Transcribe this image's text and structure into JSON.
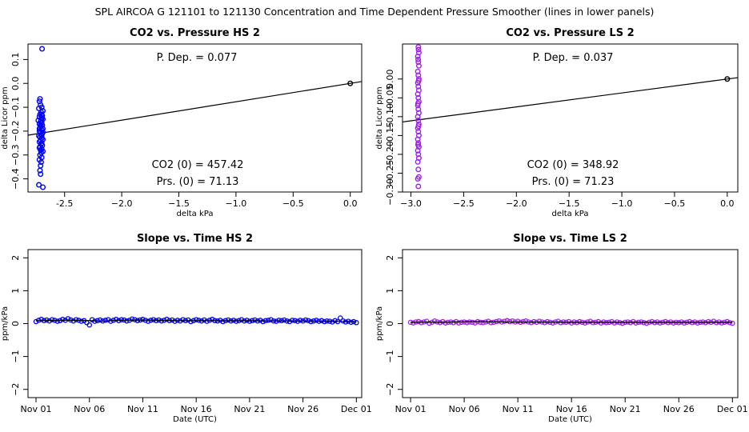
{
  "main_title": "SPL   AIRCOA G   121101 to 121130   Concentration and Time Dependent Pressure Smoother (lines in lower panels)",
  "colors": {
    "hs": "#0000ff",
    "ls": "#a020f0",
    "line": "#000000",
    "ref_point": "#000000"
  },
  "chart_data": [
    {
      "id": "co2-pressure-hs",
      "type": "scatter",
      "title": "CO2 vs. Pressure HS 2",
      "xlabel": "delta kPa",
      "ylabel": "delta Licor ppm",
      "xlim": [
        -2.82,
        0.1
      ],
      "ylim": [
        -0.455,
        0.165
      ],
      "xticks": [
        -2.5,
        -2.0,
        -1.5,
        -1.0,
        -0.5,
        0.0
      ],
      "xtick_labels": [
        "-2.5",
        "−2.0",
        "−1.5",
        "−1.0",
        "−0.5",
        "0.0"
      ],
      "yticks": [
        -0.4,
        -0.3,
        -0.2,
        -0.1,
        0.0,
        0.1
      ],
      "ytick_labels": [
        "−0.4",
        "−0.3",
        "−0.2",
        "−0.1",
        "0.0",
        "0.1"
      ],
      "annotations": {
        "p_dep": "P. Dep. =  0.077",
        "co2_0": "CO2 (0) =  457.42",
        "prs_0": "Prs. (0) =  71.13"
      },
      "fit_line": {
        "x": [
          -2.82,
          0.1
        ],
        "y": [
          -0.2171,
          0.0077
        ]
      },
      "ref_point": {
        "x": 0.0,
        "y": 0.0
      },
      "series_color": "hs",
      "points": [
        [
          -2.697,
          0.145
        ],
        [
          -2.715,
          -0.065
        ],
        [
          -2.72,
          -0.075
        ],
        [
          -2.71,
          -0.09
        ],
        [
          -2.7,
          -0.1
        ],
        [
          -2.725,
          -0.105
        ],
        [
          -2.69,
          -0.115
        ],
        [
          -2.705,
          -0.12
        ],
        [
          -2.715,
          -0.13
        ],
        [
          -2.695,
          -0.135
        ],
        [
          -2.72,
          -0.14
        ],
        [
          -2.7,
          -0.145
        ],
        [
          -2.69,
          -0.15
        ],
        [
          -2.73,
          -0.155
        ],
        [
          -2.71,
          -0.16
        ],
        [
          -2.7,
          -0.165
        ],
        [
          -2.72,
          -0.17
        ],
        [
          -2.695,
          -0.175
        ],
        [
          -2.705,
          -0.18
        ],
        [
          -2.715,
          -0.185
        ],
        [
          -2.69,
          -0.19
        ],
        [
          -2.7,
          -0.195
        ],
        [
          -2.72,
          -0.2
        ],
        [
          -2.71,
          -0.205
        ],
        [
          -2.695,
          -0.21
        ],
        [
          -2.705,
          -0.215
        ],
        [
          -2.725,
          -0.22
        ],
        [
          -2.715,
          -0.225
        ],
        [
          -2.7,
          -0.23
        ],
        [
          -2.69,
          -0.235
        ],
        [
          -2.71,
          -0.24
        ],
        [
          -2.72,
          -0.245
        ],
        [
          -2.7,
          -0.25
        ],
        [
          -2.705,
          -0.255
        ],
        [
          -2.695,
          -0.26
        ],
        [
          -2.715,
          -0.265
        ],
        [
          -2.72,
          -0.27
        ],
        [
          -2.7,
          -0.275
        ],
        [
          -2.71,
          -0.28
        ],
        [
          -2.69,
          -0.285
        ],
        [
          -2.705,
          -0.29
        ],
        [
          -2.715,
          -0.3
        ],
        [
          -2.7,
          -0.31
        ],
        [
          -2.72,
          -0.32
        ],
        [
          -2.705,
          -0.33
        ],
        [
          -2.71,
          -0.345
        ],
        [
          -2.715,
          -0.365
        ],
        [
          -2.71,
          -0.38
        ],
        [
          -2.725,
          -0.425
        ],
        [
          -2.69,
          -0.435
        ],
        [
          -2.7,
          -0.22
        ],
        [
          -2.71,
          -0.175
        ],
        [
          -2.705,
          -0.155
        ],
        [
          -2.72,
          -0.19
        ],
        [
          -2.69,
          -0.205
        ],
        [
          -2.7,
          -0.13
        ]
      ]
    },
    {
      "id": "co2-pressure-ls",
      "type": "scatter",
      "title": "CO2 vs. Pressure LS 2",
      "xlabel": "delta kPa",
      "ylabel": "delta Licor ppm",
      "xlim": [
        -3.08,
        0.1
      ],
      "ylim": [
        -0.3,
        0.093
      ],
      "xticks": [
        -3.0,
        -2.5,
        -2.0,
        -1.5,
        -1.0,
        -0.5,
        0.0
      ],
      "xtick_labels": [
        "−3.0",
        "−2.5",
        "−2.0",
        "−1.5",
        "−1.0",
        "−0.5",
        "0.0"
      ],
      "yticks": [
        -0.3,
        -0.25,
        -0.2,
        -0.15,
        -0.1,
        -0.05,
        0.0
      ],
      "ytick_labels": [
        "−0.30",
        "−0.25",
        "−0.20",
        "−0.15",
        "−0.10",
        "−0.05",
        "0.00"
      ],
      "annotations": {
        "p_dep": "P. Dep. =  0.037",
        "co2_0": "CO2 (0) =  348.92",
        "prs_0": "Prs. (0) =  71.23"
      },
      "fit_line": {
        "x": [
          -3.08,
          0.1
        ],
        "y": [
          -0.114,
          0.0037
        ]
      },
      "ref_point": {
        "x": 0.0,
        "y": 0.0
      },
      "series_color": "ls",
      "points": [
        [
          -2.93,
          0.085
        ],
        [
          -2.925,
          0.07
        ],
        [
          -2.935,
          0.06
        ],
        [
          -2.93,
          0.045
        ],
        [
          -2.925,
          0.035
        ],
        [
          -2.935,
          0.02
        ],
        [
          -2.93,
          0.01
        ],
        [
          -2.925,
          0.0
        ],
        [
          -2.935,
          -0.01
        ],
        [
          -2.93,
          -0.02
        ],
        [
          -2.925,
          -0.03
        ],
        [
          -2.935,
          -0.04
        ],
        [
          -2.93,
          -0.05
        ],
        [
          -2.925,
          -0.06
        ],
        [
          -2.935,
          -0.07
        ],
        [
          -2.93,
          -0.08
        ],
        [
          -2.925,
          -0.09
        ],
        [
          -2.935,
          -0.1
        ],
        [
          -2.93,
          -0.11
        ],
        [
          -2.925,
          -0.12
        ],
        [
          -2.935,
          -0.13
        ],
        [
          -2.93,
          -0.14
        ],
        [
          -2.925,
          -0.15
        ],
        [
          -2.935,
          -0.16
        ],
        [
          -2.93,
          -0.17
        ],
        [
          -2.925,
          -0.18
        ],
        [
          -2.935,
          -0.19
        ],
        [
          -2.93,
          -0.2
        ],
        [
          -2.925,
          -0.21
        ],
        [
          -2.935,
          -0.22
        ],
        [
          -2.93,
          -0.24
        ],
        [
          -2.925,
          -0.26
        ],
        [
          -2.935,
          -0.265
        ],
        [
          -2.93,
          -0.285
        ],
        [
          -2.928,
          0.078
        ],
        [
          -2.932,
          0.052
        ],
        [
          -2.927,
          -0.005
        ],
        [
          -2.933,
          -0.065
        ],
        [
          -2.928,
          -0.125
        ],
        [
          -2.932,
          -0.175
        ]
      ]
    },
    {
      "id": "slope-time-hs",
      "type": "line",
      "title": "Slope vs. Time HS 2",
      "xlabel": "Date (UTC)",
      "ylabel": "ppm/kPa",
      "xlim": [
        -0.75,
        30.5
      ],
      "ylim": [
        -2.25,
        2.25
      ],
      "xticks": [
        0,
        5,
        10,
        15,
        20,
        25,
        30
      ],
      "xtick_labels": [
        "Nov 01",
        "Nov 06",
        "Nov 11",
        "Nov 16",
        "Nov 21",
        "Nov 26",
        "Dec 01"
      ],
      "yticks": [
        -2,
        -1,
        0,
        1,
        2
      ],
      "ytick_labels": [
        "−2",
        "−1",
        "0",
        "1",
        "2"
      ],
      "series_color": "hs",
      "x": [
        0,
        0.25,
        0.5,
        0.75,
        1,
        1.25,
        1.5,
        1.75,
        2,
        2.25,
        2.5,
        2.75,
        3,
        3.25,
        3.5,
        3.75,
        4,
        4.25,
        4.5,
        4.75,
        5,
        5.25,
        5.5,
        5.75,
        6,
        6.25,
        6.5,
        6.75,
        7,
        7.25,
        7.5,
        7.75,
        8,
        8.25,
        8.5,
        8.75,
        9,
        9.25,
        9.5,
        9.75,
        10,
        10.25,
        10.5,
        10.75,
        11,
        11.25,
        11.5,
        11.75,
        12,
        12.25,
        12.5,
        12.75,
        13,
        13.25,
        13.5,
        13.75,
        14,
        14.25,
        14.5,
        14.75,
        15,
        15.25,
        15.5,
        15.75,
        16,
        16.25,
        16.5,
        16.75,
        17,
        17.25,
        17.5,
        17.75,
        18,
        18.25,
        18.5,
        18.75,
        19,
        19.25,
        19.5,
        19.75,
        20,
        20.25,
        20.5,
        20.75,
        21,
        21.25,
        21.5,
        21.75,
        22,
        22.25,
        22.5,
        22.75,
        23,
        23.25,
        23.5,
        23.75,
        24,
        24.25,
        24.5,
        24.75,
        25,
        25.25,
        25.5,
        25.75,
        26,
        26.25,
        26.5,
        26.75,
        27,
        27.25,
        27.5,
        27.75,
        28,
        28.25,
        28.5,
        28.75,
        29,
        29.25,
        29.5,
        29.75,
        30
      ],
      "values": [
        0.06,
        0.1,
        0.13,
        0.09,
        0.11,
        0.08,
        0.12,
        0.1,
        0.07,
        0.09,
        0.13,
        0.1,
        0.15,
        0.11,
        0.08,
        0.12,
        0.1,
        0.07,
        0.09,
        0.03,
        -0.04,
        0.12,
        0.07,
        0.09,
        0.11,
        0.08,
        0.1,
        0.12,
        0.07,
        0.1,
        0.13,
        0.09,
        0.12,
        0.11,
        0.08,
        0.1,
        0.14,
        0.12,
        0.09,
        0.11,
        0.13,
        0.1,
        0.07,
        0.1,
        0.12,
        0.09,
        0.11,
        0.08,
        0.1,
        0.13,
        0.09,
        0.11,
        0.07,
        0.1,
        0.08,
        0.12,
        0.09,
        0.11,
        0.06,
        0.09,
        0.12,
        0.1,
        0.08,
        0.11,
        0.07,
        0.1,
        0.13,
        0.09,
        0.08,
        0.1,
        0.06,
        0.09,
        0.11,
        0.08,
        0.1,
        0.07,
        0.09,
        0.12,
        0.08,
        0.1,
        0.07,
        0.09,
        0.11,
        0.08,
        0.1,
        0.06,
        0.09,
        0.1,
        0.12,
        0.08,
        0.07,
        0.1,
        0.09,
        0.11,
        0.08,
        0.06,
        0.1,
        0.09,
        0.07,
        0.1,
        0.08,
        0.11,
        0.09,
        0.06,
        0.08,
        0.1,
        0.07,
        0.09,
        0.06,
        0.08,
        0.07,
        0.05,
        0.09,
        0.06,
        0.17,
        0.08,
        0.05,
        0.07,
        0.04,
        0.06,
        0.03
      ],
      "smooth": [
        0.09,
        0.09,
        0.095,
        0.095,
        0.1,
        0.1,
        0.1,
        0.1,
        0.095,
        0.085,
        0.07,
        0.075,
        0.095,
        0.1,
        0.105,
        0.105,
        0.11,
        0.105,
        0.105,
        0.1,
        0.095,
        0.095,
        0.09,
        0.09,
        0.09,
        0.09,
        0.09,
        0.09,
        0.09,
        0.085,
        0.085,
        0.085,
        0.085,
        0.085,
        0.085,
        0.085,
        0.08,
        0.08,
        0.08,
        0.08,
        0.075,
        0.075,
        0.075,
        0.075,
        0.07,
        0.07,
        0.07,
        0.065,
        0.065,
        0.065,
        0.06
      ]
    },
    {
      "id": "slope-time-ls",
      "type": "line",
      "title": "Slope vs. Time LS 2",
      "xlabel": "Date (UTC)",
      "ylabel": "ppm/kPa",
      "xlim": [
        -0.75,
        30.5
      ],
      "ylim": [
        -2.25,
        2.25
      ],
      "xticks": [
        0,
        5,
        10,
        15,
        20,
        25,
        30
      ],
      "xtick_labels": [
        "Nov 01",
        "Nov 06",
        "Nov 11",
        "Nov 16",
        "Nov 21",
        "Nov 26",
        "Dec 01"
      ],
      "yticks": [
        -2,
        -1,
        0,
        1,
        2
      ],
      "ytick_labels": [
        "−2",
        "−1",
        "0",
        "1",
        "2"
      ],
      "series_color": "ls",
      "x": [
        0,
        0.25,
        0.5,
        0.75,
        1,
        1.25,
        1.5,
        1.75,
        2,
        2.25,
        2.5,
        2.75,
        3,
        3.25,
        3.5,
        3.75,
        4,
        4.25,
        4.5,
        4.75,
        5,
        5.25,
        5.5,
        5.75,
        6,
        6.25,
        6.5,
        6.75,
        7,
        7.25,
        7.5,
        7.75,
        8,
        8.25,
        8.5,
        8.75,
        9,
        9.25,
        9.5,
        9.75,
        10,
        10.25,
        10.5,
        10.75,
        11,
        11.25,
        11.5,
        11.75,
        12,
        12.25,
        12.5,
        12.75,
        13,
        13.25,
        13.5,
        13.75,
        14,
        14.25,
        14.5,
        14.75,
        15,
        15.25,
        15.5,
        15.75,
        16,
        16.25,
        16.5,
        16.75,
        17,
        17.25,
        17.5,
        17.75,
        18,
        18.25,
        18.5,
        18.75,
        19,
        19.25,
        19.5,
        19.75,
        20,
        20.25,
        20.5,
        20.75,
        21,
        21.25,
        21.5,
        21.75,
        22,
        22.25,
        22.5,
        22.75,
        23,
        23.25,
        23.5,
        23.75,
        24,
        24.25,
        24.5,
        24.75,
        25,
        25.25,
        25.5,
        25.75,
        26,
        26.25,
        26.5,
        26.75,
        27,
        27.25,
        27.5,
        27.75,
        28,
        28.25,
        28.5,
        28.75,
        29,
        29.25,
        29.5,
        29.75,
        30
      ],
      "values": [
        0.04,
        0.02,
        0.05,
        0.06,
        0.03,
        0.05,
        0.07,
        0.01,
        0.04,
        0.08,
        0.05,
        0.03,
        0.06,
        0.02,
        0.04,
        0.05,
        0.03,
        0.06,
        0.02,
        0.04,
        0.05,
        0.03,
        0.05,
        0.04,
        0.02,
        0.06,
        0.04,
        0.03,
        0.05,
        0.07,
        0.03,
        0.04,
        0.06,
        0.08,
        0.05,
        0.07,
        0.09,
        0.06,
        0.08,
        0.05,
        0.07,
        0.04,
        0.06,
        0.08,
        0.05,
        0.03,
        0.06,
        0.04,
        0.07,
        0.05,
        0.03,
        0.06,
        0.04,
        0.02,
        0.05,
        0.07,
        0.03,
        0.05,
        0.04,
        0.06,
        0.02,
        0.05,
        0.03,
        0.06,
        0.04,
        0.02,
        0.05,
        0.07,
        0.03,
        0.04,
        0.06,
        0.02,
        0.05,
        0.03,
        0.04,
        0.06,
        0.02,
        0.05,
        0.03,
        0.01,
        0.04,
        0.05,
        0.03,
        0.06,
        0.02,
        0.04,
        0.05,
        0.03,
        0.01,
        0.04,
        0.06,
        0.03,
        0.05,
        0.02,
        0.04,
        0.06,
        0.03,
        0.05,
        0.02,
        0.04,
        0.03,
        0.05,
        0.02,
        0.04,
        0.06,
        0.03,
        0.05,
        0.02,
        0.04,
        0.05,
        0.03,
        0.06,
        0.04,
        0.07,
        0.03,
        0.05,
        0.02,
        0.04,
        0.06,
        0.03,
        0.01
      ],
      "smooth": [
        0.04,
        0.04,
        0.045,
        0.045,
        0.04,
        0.04,
        0.045,
        0.05,
        0.055,
        0.06,
        0.065,
        0.06,
        0.055,
        0.05,
        0.05,
        0.045,
        0.045,
        0.045,
        0.045,
        0.045,
        0.045,
        0.045,
        0.045,
        0.045,
        0.04,
        0.04,
        0.04,
        0.04,
        0.04,
        0.04,
        0.04,
        0.04,
        0.04,
        0.04,
        0.04,
        0.04,
        0.04,
        0.04,
        0.04,
        0.04,
        0.04,
        0.04,
        0.04,
        0.04,
        0.04,
        0.04,
        0.04,
        0.04,
        0.04,
        0.04,
        0.04
      ]
    }
  ]
}
